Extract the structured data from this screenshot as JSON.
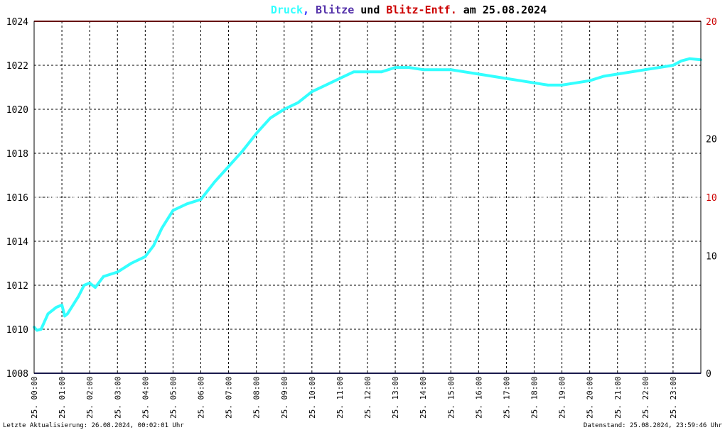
{
  "chart_data": {
    "type": "line",
    "title_parts": [
      {
        "text": "Druck",
        "color": "#33ffff"
      },
      {
        "text": ",",
        "color": "#3333ff"
      },
      {
        "text": " Blitze",
        "color": "#5533aa"
      },
      {
        "text": " und ",
        "color": "#000000"
      },
      {
        "text": "Blitz-Entf.",
        "color": "#cc0000"
      },
      {
        "text": " am 25.08.2024",
        "color": "#000000"
      }
    ],
    "footer_left": "Letzte Aktualisierung: 26.08.2024, 00:02:01 Uhr",
    "footer_right": "Datenstand: 25.08.2024, 23:59:46 Uhr",
    "y_left": {
      "min": 1008,
      "max": 1024,
      "ticks": [
        1008,
        1010,
        1012,
        1014,
        1016,
        1018,
        1020,
        1022,
        1024
      ]
    },
    "y_right_blitze": {
      "min": 0,
      "max": 30,
      "ticks": [
        0,
        10,
        20
      ],
      "color": "#000000"
    },
    "y_right_entf": {
      "min": 0,
      "max": 20,
      "ticks": [
        0,
        10,
        20
      ],
      "color": "#cc0000"
    },
    "x_ticks": [
      "25. 00:00",
      "25. 01:00",
      "25. 02:00",
      "25. 03:00",
      "25. 04:00",
      "25. 05:00",
      "25. 06:00",
      "25. 07:00",
      "25. 08:00",
      "25. 09:00",
      "25. 10:00",
      "25. 11:00",
      "25. 12:00",
      "25. 13:00",
      "25. 14:00",
      "25. 15:00",
      "25. 16:00",
      "25. 17:00",
      "25. 18:00",
      "25. 19:00",
      "25. 20:00",
      "25. 21:00",
      "25. 22:00",
      "25. 23:00"
    ],
    "x_range_hours": [
      0,
      24
    ],
    "grid": true,
    "series": [
      {
        "name": "Druck",
        "color": "#33ffff",
        "x": [
          0,
          0.1,
          0.25,
          0.5,
          0.8,
          1.0,
          1.1,
          1.2,
          1.4,
          1.6,
          1.8,
          2.0,
          2.2,
          2.5,
          3.0,
          3.5,
          4.0,
          4.3,
          4.6,
          5.0,
          5.5,
          6.0,
          6.5,
          7.0,
          7.5,
          8.0,
          8.5,
          9.0,
          9.5,
          10.0,
          10.5,
          11.0,
          11.5,
          12.0,
          12.5,
          13.0,
          13.5,
          14.0,
          14.5,
          15.0,
          15.5,
          16.0,
          16.5,
          17.0,
          17.5,
          18.0,
          18.5,
          19.0,
          19.5,
          20.0,
          20.5,
          21.0,
          21.5,
          22.0,
          22.5,
          23.0,
          23.3,
          23.6,
          24.0
        ],
        "values": [
          1010.1,
          1009.95,
          1010.0,
          1010.7,
          1011.0,
          1011.1,
          1010.6,
          1010.7,
          1011.1,
          1011.5,
          1012.0,
          1012.1,
          1011.9,
          1012.4,
          1012.6,
          1013.0,
          1013.3,
          1013.8,
          1014.6,
          1015.4,
          1015.7,
          1015.9,
          1016.7,
          1017.4,
          1018.1,
          1018.9,
          1019.6,
          1020.0,
          1020.3,
          1020.8,
          1021.1,
          1021.4,
          1021.7,
          1021.7,
          1021.7,
          1021.9,
          1021.9,
          1021.8,
          1021.8,
          1021.8,
          1021.7,
          1021.6,
          1021.5,
          1021.4,
          1021.3,
          1021.2,
          1021.1,
          1021.1,
          1021.2,
          1021.3,
          1021.5,
          1021.6,
          1021.7,
          1021.8,
          1021.9,
          1022.0,
          1022.2,
          1022.3,
          1022.25
        ]
      },
      {
        "name": "Blitz-Entf.",
        "color": "#cc0000",
        "constant": 20
      },
      {
        "name": "Blitze",
        "color": "#333399",
        "constant": 0
      }
    ]
  }
}
